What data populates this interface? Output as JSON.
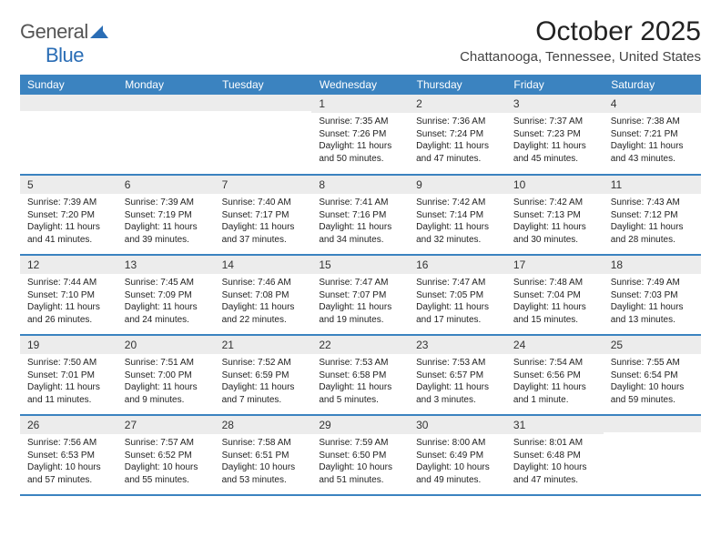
{
  "logo": {
    "word1": "General",
    "word2": "Blue"
  },
  "title": "October 2025",
  "location": "Chattanooga, Tennessee, United States",
  "colors": {
    "header_bg": "#3b83c0",
    "header_fg": "#ffffff",
    "daynum_bg": "#ececec",
    "rule": "#3b83c0",
    "logo_gray": "#555555",
    "logo_blue": "#2a6db5"
  },
  "fonts": {
    "title_pt": 30,
    "location_pt": 15,
    "header_pt": 12,
    "body_pt": 10
  },
  "weekdays": [
    "Sunday",
    "Monday",
    "Tuesday",
    "Wednesday",
    "Thursday",
    "Friday",
    "Saturday"
  ],
  "weeks": [
    [
      null,
      null,
      null,
      {
        "n": "1",
        "sunrise": "7:35 AM",
        "sunset": "7:26 PM",
        "daylight": "11 hours and 50 minutes."
      },
      {
        "n": "2",
        "sunrise": "7:36 AM",
        "sunset": "7:24 PM",
        "daylight": "11 hours and 47 minutes."
      },
      {
        "n": "3",
        "sunrise": "7:37 AM",
        "sunset": "7:23 PM",
        "daylight": "11 hours and 45 minutes."
      },
      {
        "n": "4",
        "sunrise": "7:38 AM",
        "sunset": "7:21 PM",
        "daylight": "11 hours and 43 minutes."
      }
    ],
    [
      {
        "n": "5",
        "sunrise": "7:39 AM",
        "sunset": "7:20 PM",
        "daylight": "11 hours and 41 minutes."
      },
      {
        "n": "6",
        "sunrise": "7:39 AM",
        "sunset": "7:19 PM",
        "daylight": "11 hours and 39 minutes."
      },
      {
        "n": "7",
        "sunrise": "7:40 AM",
        "sunset": "7:17 PM",
        "daylight": "11 hours and 37 minutes."
      },
      {
        "n": "8",
        "sunrise": "7:41 AM",
        "sunset": "7:16 PM",
        "daylight": "11 hours and 34 minutes."
      },
      {
        "n": "9",
        "sunrise": "7:42 AM",
        "sunset": "7:14 PM",
        "daylight": "11 hours and 32 minutes."
      },
      {
        "n": "10",
        "sunrise": "7:42 AM",
        "sunset": "7:13 PM",
        "daylight": "11 hours and 30 minutes."
      },
      {
        "n": "11",
        "sunrise": "7:43 AM",
        "sunset": "7:12 PM",
        "daylight": "11 hours and 28 minutes."
      }
    ],
    [
      {
        "n": "12",
        "sunrise": "7:44 AM",
        "sunset": "7:10 PM",
        "daylight": "11 hours and 26 minutes."
      },
      {
        "n": "13",
        "sunrise": "7:45 AM",
        "sunset": "7:09 PM",
        "daylight": "11 hours and 24 minutes."
      },
      {
        "n": "14",
        "sunrise": "7:46 AM",
        "sunset": "7:08 PM",
        "daylight": "11 hours and 22 minutes."
      },
      {
        "n": "15",
        "sunrise": "7:47 AM",
        "sunset": "7:07 PM",
        "daylight": "11 hours and 19 minutes."
      },
      {
        "n": "16",
        "sunrise": "7:47 AM",
        "sunset": "7:05 PM",
        "daylight": "11 hours and 17 minutes."
      },
      {
        "n": "17",
        "sunrise": "7:48 AM",
        "sunset": "7:04 PM",
        "daylight": "11 hours and 15 minutes."
      },
      {
        "n": "18",
        "sunrise": "7:49 AM",
        "sunset": "7:03 PM",
        "daylight": "11 hours and 13 minutes."
      }
    ],
    [
      {
        "n": "19",
        "sunrise": "7:50 AM",
        "sunset": "7:01 PM",
        "daylight": "11 hours and 11 minutes."
      },
      {
        "n": "20",
        "sunrise": "7:51 AM",
        "sunset": "7:00 PM",
        "daylight": "11 hours and 9 minutes."
      },
      {
        "n": "21",
        "sunrise": "7:52 AM",
        "sunset": "6:59 PM",
        "daylight": "11 hours and 7 minutes."
      },
      {
        "n": "22",
        "sunrise": "7:53 AM",
        "sunset": "6:58 PM",
        "daylight": "11 hours and 5 minutes."
      },
      {
        "n": "23",
        "sunrise": "7:53 AM",
        "sunset": "6:57 PM",
        "daylight": "11 hours and 3 minutes."
      },
      {
        "n": "24",
        "sunrise": "7:54 AM",
        "sunset": "6:56 PM",
        "daylight": "11 hours and 1 minute."
      },
      {
        "n": "25",
        "sunrise": "7:55 AM",
        "sunset": "6:54 PM",
        "daylight": "10 hours and 59 minutes."
      }
    ],
    [
      {
        "n": "26",
        "sunrise": "7:56 AM",
        "sunset": "6:53 PM",
        "daylight": "10 hours and 57 minutes."
      },
      {
        "n": "27",
        "sunrise": "7:57 AM",
        "sunset": "6:52 PM",
        "daylight": "10 hours and 55 minutes."
      },
      {
        "n": "28",
        "sunrise": "7:58 AM",
        "sunset": "6:51 PM",
        "daylight": "10 hours and 53 minutes."
      },
      {
        "n": "29",
        "sunrise": "7:59 AM",
        "sunset": "6:50 PM",
        "daylight": "10 hours and 51 minutes."
      },
      {
        "n": "30",
        "sunrise": "8:00 AM",
        "sunset": "6:49 PM",
        "daylight": "10 hours and 49 minutes."
      },
      {
        "n": "31",
        "sunrise": "8:01 AM",
        "sunset": "6:48 PM",
        "daylight": "10 hours and 47 minutes."
      },
      null
    ]
  ],
  "labels": {
    "sunrise": "Sunrise:",
    "sunset": "Sunset:",
    "daylight": "Daylight:"
  }
}
